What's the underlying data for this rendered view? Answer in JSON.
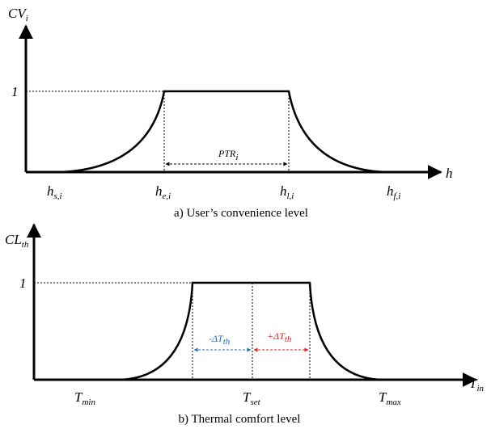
{
  "panel_a": {
    "y_label": {
      "main": "CV",
      "sub": "i"
    },
    "y_tick": "1",
    "x_label": "h",
    "interval": {
      "main": "PTR",
      "sub": "i"
    },
    "x_ticks": [
      {
        "main": "h",
        "sub": "s,i"
      },
      {
        "main": "h",
        "sub": "e,i"
      },
      {
        "main": "h",
        "sub": "l,i"
      },
      {
        "main": "h",
        "sub": "f,i"
      }
    ],
    "caption": "a) User’s convenience level"
  },
  "panel_b": {
    "y_label": {
      "main": "CL",
      "sub": "th"
    },
    "y_tick": "1",
    "x_label": {
      "main": "T",
      "sub": "in"
    },
    "minus_band": {
      "main": "-ΔT",
      "sub": "th"
    },
    "plus_band": {
      "main": "+ΔT",
      "sub": "th"
    },
    "x_ticks": [
      {
        "main": "T",
        "sub": "min"
      },
      {
        "main": "T",
        "sub": "set"
      },
      {
        "main": "T",
        "sub": "max"
      }
    ],
    "caption": "b) Thermal comfort level"
  }
}
